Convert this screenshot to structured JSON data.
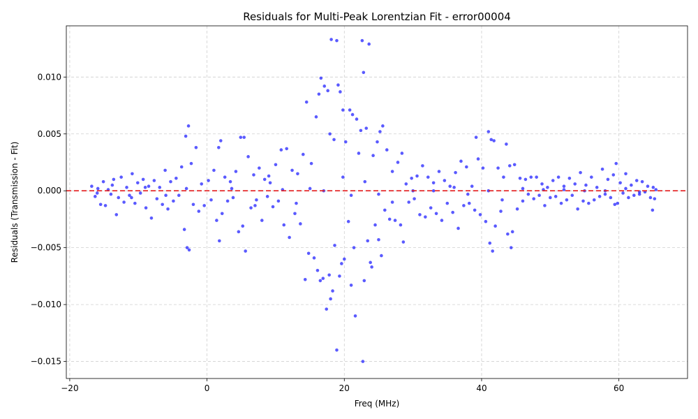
{
  "chart_data": {
    "type": "scatter",
    "title": "Residuals for Multi-Peak Lorentzian Fit - error00004",
    "xlabel": "Freq (MHz)",
    "ylabel": "Residuals (Transmission - Fit)",
    "xlim": [
      -20.5,
      70
    ],
    "ylim": [
      -0.0165,
      0.0145
    ],
    "xticks": [
      -20,
      0,
      20,
      40,
      60
    ],
    "xtick_labels": [
      "−20",
      "0",
      "20",
      "40",
      "60"
    ],
    "yticks": [
      -0.015,
      -0.01,
      -0.005,
      0.0,
      0.005,
      0.01
    ],
    "ytick_labels": [
      "−0.015",
      "−0.010",
      "−0.005",
      "0.000",
      "0.005",
      "0.010"
    ],
    "grid": true,
    "reference_line": {
      "y": 0.0,
      "color": "#e31a1c",
      "style": "dashed"
    },
    "marker_color": "#1a1aff",
    "series": [
      {
        "points": [
          [
            -16.8,
            0.0004
          ],
          [
            -16.3,
            -0.0005
          ],
          [
            -15.9,
            0.0002
          ],
          [
            -15.5,
            -0.0012
          ],
          [
            -15.1,
            0.0008
          ],
          [
            -14.8,
            -0.0013
          ],
          [
            -14.4,
            0.0001
          ],
          [
            -14.0,
            -0.0003
          ],
          [
            -13.6,
            0.001
          ],
          [
            -13.2,
            -0.0021
          ],
          [
            -12.9,
            -0.0006
          ],
          [
            -12.5,
            0.0012
          ],
          [
            -12.1,
            -0.001
          ],
          [
            -11.7,
            0.0003
          ],
          [
            -11.3,
            -0.0004
          ],
          [
            -10.9,
            0.0015
          ],
          [
            -10.5,
            -0.0011
          ],
          [
            -10.1,
            0.0007
          ],
          [
            -9.7,
            -0.0002
          ],
          [
            -9.3,
            0.001
          ],
          [
            -8.9,
            -0.0015
          ],
          [
            -8.5,
            0.0004
          ],
          [
            -8.1,
            -0.0024
          ],
          [
            -7.7,
            0.0009
          ],
          [
            -7.3,
            -0.0007
          ],
          [
            -6.9,
            0.0003
          ],
          [
            -6.5,
            -0.0012
          ],
          [
            -6.1,
            0.0018
          ],
          [
            -5.7,
            -0.0016
          ],
          [
            -5.3,
            0.0008
          ],
          [
            -4.9,
            -0.0009
          ],
          [
            -4.5,
            0.0011
          ],
          [
            -4.1,
            -0.0004
          ],
          [
            -3.7,
            0.0021
          ],
          [
            -3.3,
            -0.0034
          ],
          [
            -3.1,
            0.0048
          ],
          [
            -2.9,
            -0.005
          ],
          [
            -2.7,
            0.0057
          ],
          [
            -2.6,
            -0.0052
          ],
          [
            -2.3,
            0.0024
          ],
          [
            -2.0,
            -0.0012
          ],
          [
            -1.6,
            0.0038
          ],
          [
            -1.2,
            -0.0018
          ],
          [
            -0.8,
            0.0006
          ],
          [
            -0.4,
            -0.0013
          ],
          [
            0.2,
            0.0009
          ],
          [
            0.6,
            -0.0008
          ],
          [
            1.0,
            0.0018
          ],
          [
            1.4,
            -0.0026
          ],
          [
            1.7,
            0.0038
          ],
          [
            1.8,
            -0.0044
          ],
          [
            2.0,
            0.0044
          ],
          [
            2.2,
            -0.002
          ],
          [
            2.6,
            0.0012
          ],
          [
            3.0,
            -0.0009
          ],
          [
            3.4,
            0.0008
          ],
          [
            3.8,
            -0.0006
          ],
          [
            4.2,
            0.0017
          ],
          [
            4.6,
            -0.0036
          ],
          [
            4.9,
            0.0047
          ],
          [
            5.2,
            -0.0031
          ],
          [
            5.4,
            0.0047
          ],
          [
            5.6,
            -0.0053
          ],
          [
            6.0,
            0.003
          ],
          [
            6.4,
            -0.0015
          ],
          [
            6.8,
            0.0014
          ],
          [
            7.2,
            -0.0008
          ],
          [
            7.6,
            0.002
          ],
          [
            8.0,
            -0.0026
          ],
          [
            8.4,
            0.001
          ],
          [
            8.8,
            -0.0005
          ],
          [
            9.2,
            0.0007
          ],
          [
            9.6,
            -0.0014
          ],
          [
            10.0,
            0.0023
          ],
          [
            10.4,
            -0.0009
          ],
          [
            10.8,
            0.0036
          ],
          [
            11.2,
            -0.003
          ],
          [
            11.6,
            0.0037
          ],
          [
            12.0,
            -0.0041
          ],
          [
            12.4,
            0.0018
          ],
          [
            12.8,
            -0.002
          ],
          [
            13.2,
            0.0015
          ],
          [
            13.6,
            -0.0029
          ],
          [
            14.0,
            0.0032
          ],
          [
            14.3,
            -0.0078
          ],
          [
            14.5,
            0.0078
          ],
          [
            14.8,
            -0.0055
          ],
          [
            15.2,
            0.0024
          ],
          [
            15.6,
            -0.0059
          ],
          [
            15.9,
            0.0065
          ],
          [
            16.1,
            -0.007
          ],
          [
            16.3,
            0.0085
          ],
          [
            16.5,
            -0.0079
          ],
          [
            16.6,
            0.0099
          ],
          [
            16.9,
            -0.0077
          ],
          [
            17.1,
            0.0092
          ],
          [
            17.4,
            -0.0104
          ],
          [
            17.6,
            0.0088
          ],
          [
            17.8,
            -0.0074
          ],
          [
            17.9,
            0.005
          ],
          [
            18.0,
            -0.0095
          ],
          [
            18.1,
            0.0133
          ],
          [
            18.3,
            -0.0088
          ],
          [
            18.5,
            0.0045
          ],
          [
            18.6,
            -0.0048
          ],
          [
            18.9,
            0.0132
          ],
          [
            18.9,
            -0.014
          ],
          [
            19.1,
            0.0093
          ],
          [
            19.3,
            -0.0075
          ],
          [
            19.4,
            0.0087
          ],
          [
            19.6,
            -0.0064
          ],
          [
            19.8,
            0.0071
          ],
          [
            20.0,
            -0.006
          ],
          [
            20.2,
            0.0043
          ],
          [
            20.6,
            -0.0027
          ],
          [
            20.8,
            0.0071
          ],
          [
            21.0,
            -0.0083
          ],
          [
            21.2,
            0.0067
          ],
          [
            21.4,
            -0.005
          ],
          [
            21.6,
            -0.011
          ],
          [
            21.8,
            0.0063
          ],
          [
            22.1,
            0.0033
          ],
          [
            22.4,
            0.0053
          ],
          [
            22.6,
            0.0132
          ],
          [
            22.7,
            -0.015
          ],
          [
            22.8,
            0.0104
          ],
          [
            22.9,
            -0.0079
          ],
          [
            23.2,
            0.0055
          ],
          [
            23.4,
            -0.0044
          ],
          [
            23.6,
            0.0129
          ],
          [
            23.8,
            -0.0063
          ],
          [
            24.0,
            -0.0067
          ],
          [
            24.2,
            0.0031
          ],
          [
            24.5,
            -0.003
          ],
          [
            24.8,
            0.0043
          ],
          [
            25.0,
            -0.0043
          ],
          [
            25.2,
            0.0052
          ],
          [
            25.4,
            -0.0057
          ],
          [
            25.6,
            0.0057
          ],
          [
            25.9,
            -0.0017
          ],
          [
            26.2,
            0.0036
          ],
          [
            26.6,
            -0.0025
          ],
          [
            27.0,
            0.0017
          ],
          [
            27.4,
            -0.0026
          ],
          [
            27.8,
            0.0025
          ],
          [
            28.2,
            -0.003
          ],
          [
            28.4,
            0.0033
          ],
          [
            28.6,
            -0.0045
          ],
          [
            29.0,
            0.0006
          ],
          [
            29.4,
            -0.001
          ],
          [
            29.8,
            0.0011
          ],
          [
            30.2,
            -0.0007
          ],
          [
            30.6,
            0.0013
          ],
          [
            31.0,
            -0.0021
          ],
          [
            31.4,
            0.0022
          ],
          [
            31.8,
            -0.0023
          ],
          [
            32.2,
            0.0012
          ],
          [
            32.6,
            -0.0015
          ],
          [
            33.0,
            0.0007
          ],
          [
            33.4,
            -0.002
          ],
          [
            33.8,
            0.0017
          ],
          [
            34.2,
            -0.0026
          ],
          [
            34.6,
            0.0009
          ],
          [
            35.0,
            -0.0011
          ],
          [
            35.4,
            0.0004
          ],
          [
            35.8,
            -0.0019
          ],
          [
            36.2,
            0.0016
          ],
          [
            36.6,
            -0.0033
          ],
          [
            37.0,
            0.0026
          ],
          [
            37.4,
            -0.0013
          ],
          [
            37.8,
            0.0021
          ],
          [
            38.2,
            -0.0011
          ],
          [
            38.6,
            0.0004
          ],
          [
            39.0,
            -0.0017
          ],
          [
            39.2,
            0.0047
          ],
          [
            39.5,
            0.0028
          ],
          [
            39.8,
            -0.0021
          ],
          [
            40.2,
            0.002
          ],
          [
            40.6,
            -0.0027
          ],
          [
            41.0,
            0.0052
          ],
          [
            41.2,
            -0.0046
          ],
          [
            41.4,
            0.0045
          ],
          [
            41.6,
            -0.0053
          ],
          [
            41.8,
            0.0044
          ],
          [
            42.0,
            -0.0031
          ],
          [
            42.4,
            0.002
          ],
          [
            42.8,
            -0.0018
          ],
          [
            43.2,
            0.0012
          ],
          [
            43.6,
            0.0041
          ],
          [
            43.8,
            -0.0038
          ],
          [
            44.1,
            0.0022
          ],
          [
            44.3,
            -0.005
          ],
          [
            44.5,
            -0.0036
          ],
          [
            44.8,
            0.0023
          ],
          [
            45.2,
            -0.0016
          ],
          [
            45.6,
            0.0011
          ],
          [
            46.0,
            -0.0009
          ],
          [
            46.4,
            0.001
          ],
          [
            46.8,
            -0.0003
          ],
          [
            47.2,
            0.0012
          ],
          [
            47.6,
            -0.0007
          ],
          [
            48.0,
            0.0012
          ],
          [
            48.4,
            -0.0004
          ],
          [
            48.8,
            0.0006
          ],
          [
            49.2,
            -0.0013
          ],
          [
            49.6,
            0.0003
          ],
          [
            50.0,
            -0.0006
          ],
          [
            50.4,
            0.0009
          ],
          [
            50.8,
            -0.0005
          ],
          [
            51.2,
            0.0012
          ],
          [
            51.6,
            -0.0011
          ],
          [
            52.0,
            0.0004
          ],
          [
            52.4,
            -0.0008
          ],
          [
            52.8,
            0.0011
          ],
          [
            53.2,
            -0.0004
          ],
          [
            53.6,
            0.0006
          ],
          [
            54.0,
            -0.0016
          ],
          [
            54.4,
            0.0016
          ],
          [
            54.8,
            -0.0009
          ],
          [
            55.2,
            0.0005
          ],
          [
            55.6,
            -0.0011
          ],
          [
            56.0,
            0.0012
          ],
          [
            56.4,
            -0.0008
          ],
          [
            56.8,
            0.0003
          ],
          [
            57.2,
            -0.0005
          ],
          [
            57.6,
            0.0019
          ],
          [
            58.0,
            -0.0003
          ],
          [
            58.4,
            0.001
          ],
          [
            58.8,
            -0.0006
          ],
          [
            59.2,
            0.0014
          ],
          [
            59.4,
            -0.0012
          ],
          [
            59.6,
            0.0024
          ],
          [
            59.8,
            -0.0011
          ],
          [
            60.2,
            0.0007
          ],
          [
            60.6,
            -0.0002
          ],
          [
            61.0,
            0.0015
          ],
          [
            61.4,
            -0.0006
          ],
          [
            61.8,
            0.0005
          ],
          [
            62.2,
            -0.0004
          ],
          [
            62.6,
            0.0009
          ],
          [
            63.0,
            -0.0003
          ],
          [
            63.4,
            0.0008
          ],
          [
            63.8,
            -0.0001
          ],
          [
            64.2,
            0.0004
          ],
          [
            64.6,
            -0.0006
          ],
          [
            64.9,
            -0.0017
          ],
          [
            65.2,
            -0.0007
          ],
          [
            65.4,
            0.0001
          ],
          [
            -16.0,
            -0.0002
          ],
          [
            -13.8,
            0.0005
          ],
          [
            -11.0,
            -0.0006
          ],
          [
            -9.0,
            0.0003
          ],
          [
            -6.0,
            -0.0004
          ],
          [
            -3.0,
            0.0002
          ],
          [
            3.6,
            0.0002
          ],
          [
            7.0,
            -0.0013
          ],
          [
            9.0,
            0.0013
          ],
          [
            11.0,
            0.0001
          ],
          [
            13.0,
            -0.0011
          ],
          [
            15.0,
            0.0002
          ],
          [
            17.0,
            0.0
          ],
          [
            19.8,
            0.0012
          ],
          [
            21.0,
            -0.0004
          ],
          [
            23.0,
            0.0008
          ],
          [
            25.0,
            -0.0003
          ],
          [
            27.0,
            -0.001
          ],
          [
            30.0,
            0.0
          ],
          [
            33.0,
            0.0
          ],
          [
            36.0,
            0.0003
          ],
          [
            38.0,
            -0.0003
          ],
          [
            41.0,
            0.0
          ],
          [
            43.0,
            -0.0008
          ],
          [
            46.0,
            0.0002
          ],
          [
            49.0,
            0.0001
          ],
          [
            52.0,
            0.0001
          ],
          [
            55.0,
            0.0
          ],
          [
            58.0,
            0.0
          ],
          [
            61.0,
            0.0002
          ],
          [
            63.0,
            -0.0001
          ],
          [
            65.0,
            0.0003
          ]
        ]
      }
    ]
  }
}
